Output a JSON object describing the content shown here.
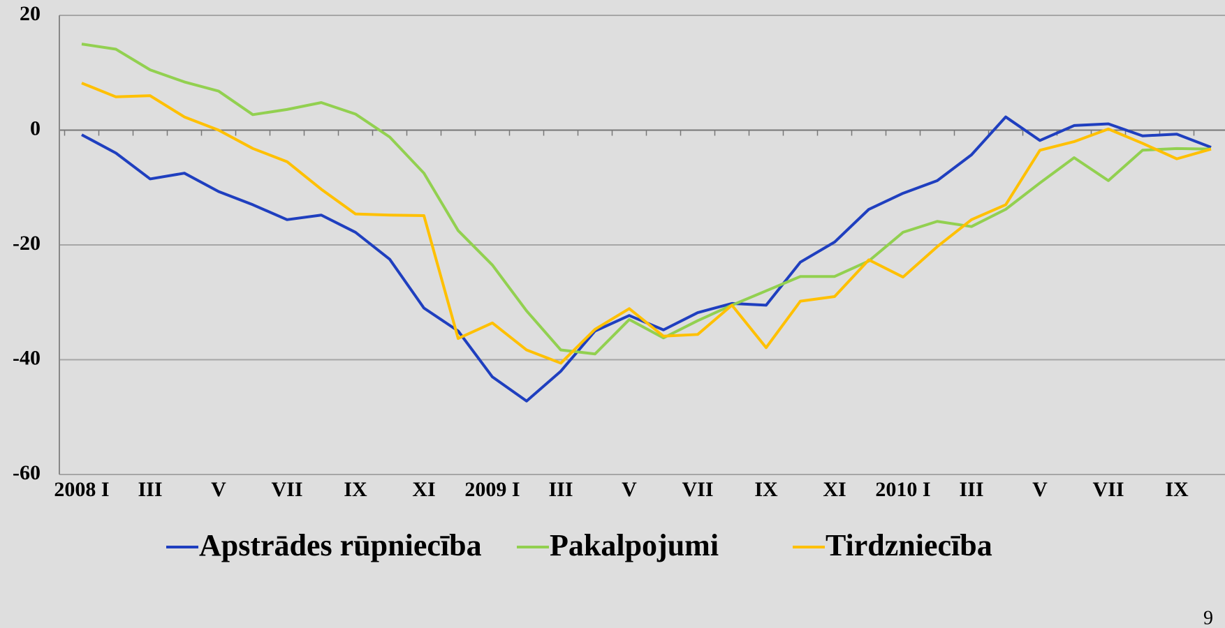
{
  "chart_data": {
    "type": "line",
    "categories": [
      "2008 I",
      null,
      "III",
      null,
      "V",
      null,
      "VII",
      null,
      "IX",
      null,
      "XI",
      null,
      "2009 I",
      null,
      "III",
      null,
      "V",
      null,
      "VII",
      null,
      "IX",
      null,
      "XI",
      null,
      "2010 I",
      null,
      "III",
      null,
      "V",
      null,
      "VII",
      null,
      "IX",
      null
    ],
    "series": [
      {
        "name": "Apstrādes rūpniecība",
        "color": "#1f3fbf",
        "values": [
          -0.8,
          -4,
          -8.5,
          -7.5,
          -10.7,
          -13,
          -15.6,
          -14.8,
          -17.8,
          -22.5,
          -31,
          -35,
          -43,
          -47.2,
          -42,
          -35,
          -32.3,
          -34.8,
          -31.8,
          -30.2,
          -30.5,
          -23,
          -19.5,
          -13.8,
          -11,
          -8.8,
          -4.3,
          2.3,
          -1.8,
          0.8,
          1.1,
          -1,
          -0.7,
          -3
        ]
      },
      {
        "name": "Pakalpojumi",
        "color": "#92d050",
        "values": [
          15,
          14.1,
          10.5,
          8.4,
          6.8,
          2.7,
          3.6,
          4.8,
          2.8,
          -1.2,
          -7.5,
          -17.5,
          -23.5,
          -31.5,
          -38.3,
          -39,
          -33,
          -36.2,
          -33.2,
          -30.5,
          -28,
          -25.5,
          -25.5,
          -22.8,
          -17.8,
          -15.9,
          -16.8,
          -13.8,
          -9.2,
          -4.8,
          -8.8,
          -3.5,
          -3.2,
          -3.3
        ]
      },
      {
        "name": "Tirdzniecība",
        "color": "#ffc000",
        "values": [
          8.2,
          5.8,
          6,
          2.3,
          0,
          -3.2,
          -5.5,
          -10.3,
          -14.6,
          -14.8,
          -14.9,
          -36.3,
          -33.6,
          -38.3,
          -40.6,
          -34.7,
          -31.1,
          -35.9,
          -35.6,
          -30.5,
          -37.9,
          -29.8,
          -29,
          -22.6,
          -25.6,
          -20.3,
          -15.6,
          -13,
          -3.5,
          -2,
          0.2,
          -2.3,
          -5,
          -3.3
        ]
      }
    ],
    "ylim": [
      -60,
      20
    ],
    "yticks": [
      -60,
      -40,
      -20,
      0,
      20
    ],
    "grid": true,
    "legend": "bottom",
    "page_number": "9"
  }
}
